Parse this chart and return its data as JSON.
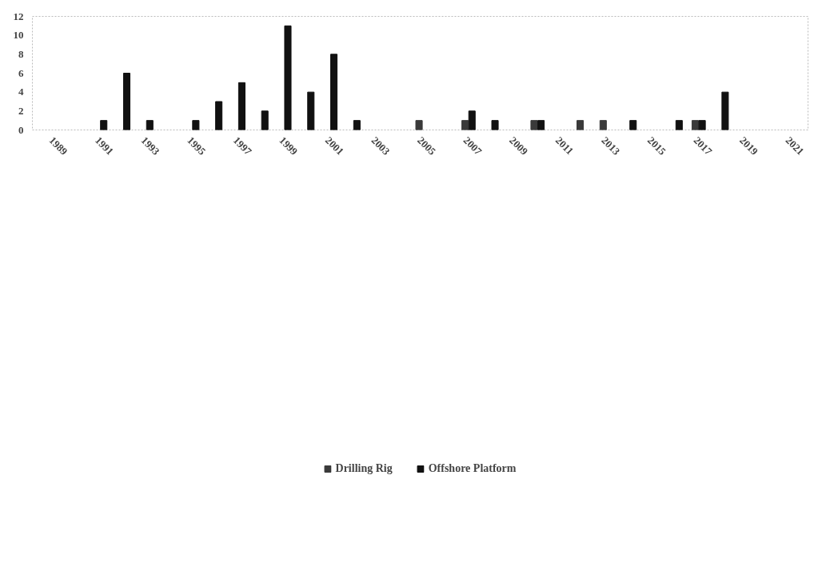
{
  "chart_data": {
    "type": "bar",
    "series": [
      {
        "name": "Drilling Rig",
        "color": "#3a3a3a",
        "x": [
          2005,
          2007,
          2010,
          2012,
          2013,
          2017
        ],
        "values": [
          1,
          1,
          1,
          1,
          1,
          1
        ]
      },
      {
        "name": "Offshore Platform",
        "color": "#111111",
        "x": [
          1991,
          1992,
          1993,
          1995,
          1996,
          1997,
          1998,
          1999,
          2000,
          2001,
          2002,
          2007,
          2008,
          2010,
          2014,
          2016,
          2017,
          2018
        ],
        "values": [
          1,
          6,
          1,
          1,
          3,
          5,
          2,
          11,
          4,
          8,
          1,
          2,
          1,
          1,
          1,
          1,
          1,
          4
        ]
      }
    ],
    "xlim": [
      1988.2,
      2021.9
    ],
    "xticks": [
      1989,
      1991,
      1993,
      1995,
      1997,
      1999,
      2001,
      2003,
      2005,
      2007,
      2009,
      2011,
      2013,
      2015,
      2017,
      2019,
      2021
    ],
    "ylim": [
      0,
      12
    ],
    "yticks": [
      0,
      2,
      4,
      6,
      8,
      10,
      12
    ],
    "grid": false,
    "legend": "bottom"
  }
}
